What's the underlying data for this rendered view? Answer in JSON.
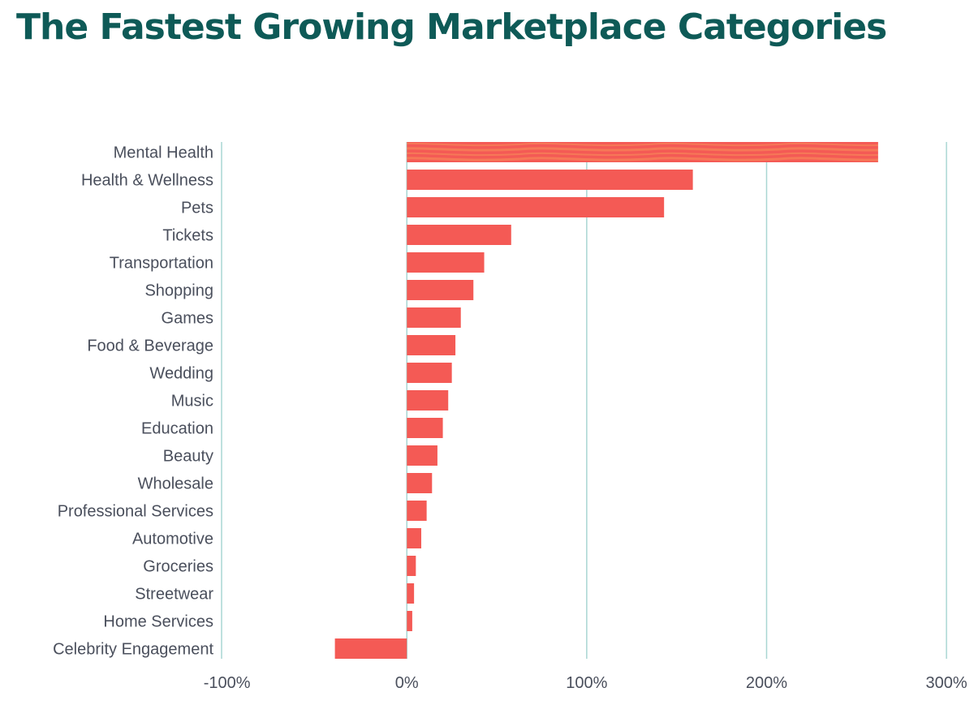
{
  "title": "The Fastest Growing Marketplace Categories",
  "chart_data": {
    "type": "bar",
    "orientation": "horizontal",
    "title": "The Fastest Growing Marketplace Categories",
    "categories": [
      "Mental Health",
      "Health & Wellness",
      "Pets",
      "Tickets",
      "Transportation",
      "Shopping",
      "Games",
      "Food & Beverage",
      "Wedding",
      "Music",
      "Education",
      "Beauty",
      "Wholesale",
      "Professional Services",
      "Automotive",
      "Groceries",
      "Streetwear",
      "Home Services",
      "Celebrity Engagement"
    ],
    "values": [
      262,
      159,
      143,
      58,
      43,
      37,
      30,
      27,
      25,
      23,
      20,
      17,
      14,
      11,
      8,
      5,
      4,
      3,
      -40
    ],
    "unit": "%",
    "xlim": [
      -103,
      295
    ],
    "xticks": [
      -100,
      0,
      100,
      200,
      300
    ],
    "xtick_labels": [
      "-100%",
      "0%",
      "100%",
      "200%",
      "300%"
    ],
    "xlabel": "",
    "ylabel": "",
    "grid": "vertical",
    "colors": {
      "bar": "#f45a55",
      "grid": "#a9d6d3",
      "highlight_stripe": "#f77b58",
      "title": "#0e5a57",
      "label": "#4a4f5c"
    }
  }
}
